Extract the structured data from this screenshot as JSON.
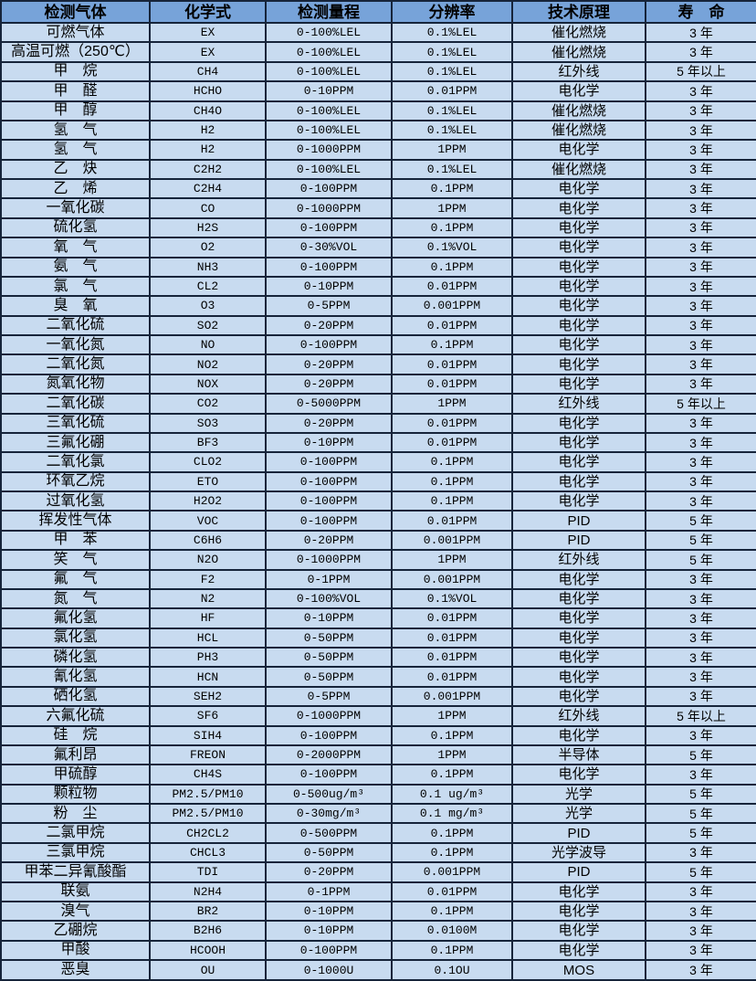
{
  "colors": {
    "header_bg": "#77a3d9",
    "row_bg": "#c8dbf0",
    "border": "#16243a",
    "text": "#000000"
  },
  "table": {
    "columns": [
      {
        "key": "gas",
        "label": "检测气体"
      },
      {
        "key": "formula",
        "label": "化学式"
      },
      {
        "key": "range",
        "label": "检测量程"
      },
      {
        "key": "resolution",
        "label": "分辨率"
      },
      {
        "key": "principle",
        "label": "技术原理"
      },
      {
        "key": "lifespan",
        "label": "寿　命"
      }
    ],
    "rows": [
      [
        "可燃气体",
        "EX",
        "0-100%LEL",
        "0.1%LEL",
        "催化燃烧",
        "3 年"
      ],
      [
        "高温可燃（250℃）",
        "EX",
        "0-100%LEL",
        "0.1%LEL",
        "催化燃烧",
        "3 年"
      ],
      [
        "甲　烷",
        "CH4",
        "0-100%LEL",
        "0.1%LEL",
        "红外线",
        "5 年以上"
      ],
      [
        "甲　醛",
        "HCHO",
        "0-10PPM",
        "0.01PPM",
        "电化学",
        "3 年"
      ],
      [
        "甲　醇",
        "CH4O",
        "0-100%LEL",
        "0.1%LEL",
        "催化燃烧",
        "3 年"
      ],
      [
        "氢　气",
        "H2",
        "0-100%LEL",
        "0.1%LEL",
        "催化燃烧",
        "3 年"
      ],
      [
        "氢　气",
        "H2",
        "0-1000PPM",
        "1PPM",
        "电化学",
        "3 年"
      ],
      [
        "乙　炔",
        "C2H2",
        "0-100%LEL",
        "0.1%LEL",
        "催化燃烧",
        "3 年"
      ],
      [
        "乙　烯",
        "C2H4",
        "0-100PPM",
        "0.1PPM",
        "电化学",
        "3 年"
      ],
      [
        "一氧化碳",
        "CO",
        "0-1000PPM",
        "1PPM",
        "电化学",
        "3 年"
      ],
      [
        "硫化氢",
        "H2S",
        "0-100PPM",
        "0.1PPM",
        "电化学",
        "3 年"
      ],
      [
        "氧　气",
        "O2",
        "0-30%VOL",
        "0.1%VOL",
        "电化学",
        "3 年"
      ],
      [
        "氨　气",
        "NH3",
        "0-100PPM",
        "0.1PPM",
        "电化学",
        "3 年"
      ],
      [
        "氯　气",
        "CL2",
        "0-10PPM",
        "0.01PPM",
        "电化学",
        "3 年"
      ],
      [
        "臭　氧",
        "O3",
        "0-5PPM",
        "0.001PPM",
        "电化学",
        "3 年"
      ],
      [
        "二氧化硫",
        "SO2",
        "0-20PPM",
        "0.01PPM",
        "电化学",
        "3 年"
      ],
      [
        "一氧化氮",
        "NO",
        "0-100PPM",
        "0.1PPM",
        "电化学",
        "3 年"
      ],
      [
        "二氧化氮",
        "NO2",
        "0-20PPM",
        "0.01PPM",
        "电化学",
        "3 年"
      ],
      [
        "氮氧化物",
        "NOX",
        "0-20PPM",
        "0.01PPM",
        "电化学",
        "3 年"
      ],
      [
        "二氧化碳",
        "CO2",
        "0-5000PPM",
        "1PPM",
        "红外线",
        "5 年以上"
      ],
      [
        "三氧化硫",
        "SO3",
        "0-20PPM",
        "0.01PPM",
        "电化学",
        "3 年"
      ],
      [
        "三氟化硼",
        "BF3",
        "0-10PPM",
        "0.01PPM",
        "电化学",
        "3 年"
      ],
      [
        "二氧化氯",
        "CLO2",
        "0-100PPM",
        "0.1PPM",
        "电化学",
        "3 年"
      ],
      [
        "环氧乙烷",
        "ETO",
        "0-100PPM",
        "0.1PPM",
        "电化学",
        "3 年"
      ],
      [
        "过氧化氢",
        "H2O2",
        "0-100PPM",
        "0.1PPM",
        "电化学",
        "3 年"
      ],
      [
        "挥发性气体",
        "VOC",
        "0-100PPM",
        "0.01PPM",
        "PID",
        "5 年"
      ],
      [
        "甲　苯",
        "C6H6",
        "0-20PPM",
        "0.001PPM",
        "PID",
        "5 年"
      ],
      [
        "笑　气",
        "N2O",
        "0-1000PPM",
        "1PPM",
        "红外线",
        "5 年"
      ],
      [
        "氟　气",
        "F2",
        "0-1PPM",
        "0.001PPM",
        "电化学",
        "3 年"
      ],
      [
        "氮　气",
        "N2",
        "0-100%VOL",
        "0.1%VOL",
        "电化学",
        "3 年"
      ],
      [
        "氟化氢",
        "HF",
        "0-10PPM",
        "0.01PPM",
        "电化学",
        "3 年"
      ],
      [
        "氯化氢",
        "HCL",
        "0-50PPM",
        "0.01PPM",
        "电化学",
        "3 年"
      ],
      [
        "磷化氢",
        "PH3",
        "0-50PPM",
        "0.01PPM",
        "电化学",
        "3 年"
      ],
      [
        "氰化氢",
        "HCN",
        "0-50PPM",
        "0.01PPM",
        "电化学",
        "3 年"
      ],
      [
        "硒化氢",
        "SEH2",
        "0-5PPM",
        "0.001PPM",
        "电化学",
        "3 年"
      ],
      [
        "六氟化硫",
        "SF6",
        "0-1000PPM",
        "1PPM",
        "红外线",
        "5 年以上"
      ],
      [
        "硅　烷",
        "SIH4",
        "0-100PPM",
        "0.1PPM",
        "电化学",
        "3 年"
      ],
      [
        "氟利昂",
        "FREON",
        "0-2000PPM",
        "1PPM",
        "半导体",
        "5 年"
      ],
      [
        "甲硫醇",
        "CH4S",
        "0-100PPM",
        "0.1PPM",
        "电化学",
        "3 年"
      ],
      [
        "颗粒物",
        "PM2.5/PM10",
        "0-500ug/m³",
        "0.1 ug/m³",
        "光学",
        "5 年"
      ],
      [
        "粉　尘",
        "PM2.5/PM10",
        "0-30mg/m³",
        "0.1 mg/m³",
        "光学",
        "5 年"
      ],
      [
        "二氯甲烷",
        "CH2CL2",
        "0-500PPM",
        "0.1PPM",
        "PID",
        "5 年"
      ],
      [
        "三氯甲烷",
        "CHCL3",
        "0-50PPM",
        "0.1PPM",
        "光学波导",
        "3 年"
      ],
      [
        "甲苯二异氰酸酯",
        "TDI",
        "0-20PPM",
        "0.001PPM",
        "PID",
        "5 年"
      ],
      [
        "联氨",
        "N2H4",
        "0-1PPM",
        "0.01PPM",
        "电化学",
        "3 年"
      ],
      [
        "溴气",
        "BR2",
        "0-10PPM",
        "0.1PPM",
        "电化学",
        "3 年"
      ],
      [
        "乙硼烷",
        "B2H6",
        "0-10PPM",
        "0.0100M",
        "电化学",
        "3 年"
      ],
      [
        "甲酸",
        "HCOOH",
        "0-100PPM",
        "0.1PPM",
        "电化学",
        "3 年"
      ],
      [
        "恶臭",
        "OU",
        "0-1000U",
        "0.1OU",
        "MOS",
        "3 年"
      ]
    ]
  }
}
